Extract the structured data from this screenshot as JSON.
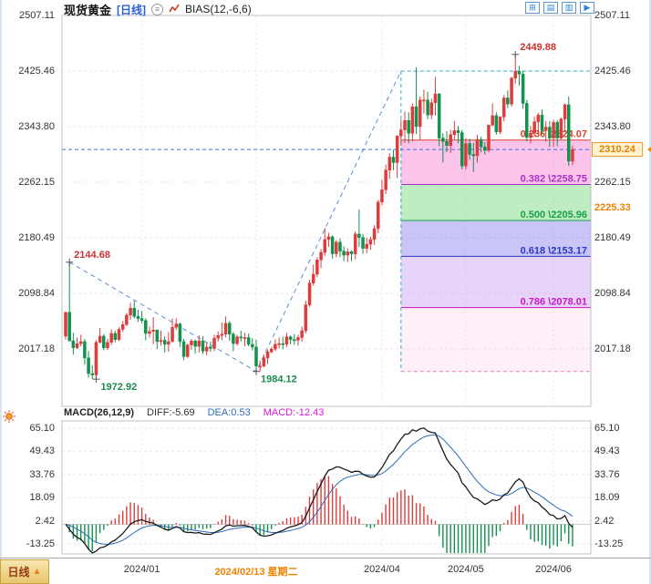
{
  "header": {
    "symbol": "现货黄金",
    "period": "[日线]",
    "indicator": "BIAS(12,-6,6)"
  },
  "toolbar": {
    "icons": [
      {
        "name": "quad-view-icon",
        "glyph": "⊞"
      },
      {
        "name": "bar-view-icon",
        "glyph": "▤"
      },
      {
        "name": "panel-view-icon",
        "glyph": "▥"
      },
      {
        "name": "play-icon",
        "glyph": "▶"
      }
    ]
  },
  "macd_panel": {
    "title": "MACD(26,12,9)",
    "diff": "DIFF:-5.69",
    "dea": "DEA:0.53",
    "macd": "MACD:-12.43"
  },
  "right_markers": {
    "last_price": "2310.24",
    "level_price": "2225.33"
  },
  "bottom_tab": {
    "label": "日线",
    "arrow": "▲"
  },
  "colors": {
    "up": "#dd3c3c",
    "down": "#12914e",
    "grid": "#e9e9ef",
    "border": "#c0c0c8",
    "current_price_line": "#3a6fd8",
    "trendline": "#5b8dd8",
    "fib_box_dash": "#35a8cc",
    "fib_bottom_dash": "#ee7ab8",
    "accent": "#f08300",
    "dif_line": "#1a1a1a",
    "dea_line": "#2b6cb8",
    "annotation_high": "#cc3030",
    "annotation_low": "#1d8a4d"
  },
  "chart_data": {
    "type": "candlestick",
    "title": "现货黄金 日线 (Spot Gold Daily) with MACD(26,12,9)",
    "price_ticks": [
      2507.11,
      2425.46,
      2343.8,
      2262.15,
      2180.49,
      2098.84,
      2017.18
    ],
    "macd_ticks": [
      65.1,
      49.43,
      33.76,
      18.09,
      2.42,
      -13.25
    ],
    "x_ticks": [
      {
        "label": "2024/01",
        "index": 20,
        "selected": false
      },
      {
        "label": "2024/02/13 星期二",
        "index": 50,
        "selected": true
      },
      {
        "label": "2024/04",
        "index": 83,
        "selected": false
      },
      {
        "label": "2024/05",
        "index": 105,
        "selected": false
      },
      {
        "label": "2024/06",
        "index": 128,
        "selected": false
      }
    ],
    "current_price": 2310.24,
    "annotations": [
      {
        "index": 1,
        "price": 2144.68,
        "text": "2144.68",
        "kind": "high"
      },
      {
        "index": 8,
        "price": 1972.92,
        "text": "1972.92",
        "kind": "low"
      },
      {
        "index": 50,
        "price": 1984.12,
        "text": "1984.12",
        "kind": "low"
      },
      {
        "index": 118,
        "price": 2449.88,
        "text": "2449.88",
        "kind": "high"
      }
    ],
    "fibonacci": {
      "box_start_index": 88,
      "box_top": 2425.46,
      "box_bottom": 1984.12,
      "levels": [
        {
          "label": "0.236 \\2324.07",
          "price": 2324.07,
          "color": "#d84028"
        },
        {
          "label": "0.382 \\2258.75",
          "price": 2258.75,
          "color": "#a832c8"
        },
        {
          "label": "0.500 \\2205.96",
          "price": 2205.96,
          "color": "#18a048"
        },
        {
          "label": "0.618 \\2153.17",
          "price": 2153.17,
          "color": "#2838c8"
        },
        {
          "label": "0.786 \\2078.01",
          "price": 2078.01,
          "color": "#c818c8"
        }
      ],
      "band_fills": [
        "rgba(248,100,200,0.38)",
        "rgba(110,215,120,0.45)",
        "rgba(120,110,235,0.40)",
        "rgba(185,120,235,0.32)",
        "rgba(250,170,220,0.18)"
      ]
    },
    "trendline": [
      {
        "index": 1,
        "price": 2144.68
      },
      {
        "index": 50,
        "price": 1984.12
      },
      {
        "index": 88,
        "price": 2425.46
      }
    ],
    "candles_ohlc": [
      [
        2036,
        2072,
        2031,
        2071
      ],
      [
        2071,
        2144.68,
        2063,
        2029
      ],
      [
        2029,
        2041,
        2009,
        2019
      ],
      [
        2019,
        2034,
        2017,
        2025
      ],
      [
        2025,
        2038,
        2021,
        2028
      ],
      [
        2028,
        2032,
        1994,
        2004
      ],
      [
        2004,
        2014,
        1975,
        1981
      ],
      [
        1981,
        1993,
        1973,
        1979
      ],
      [
        1979,
        2030,
        1972.92,
        2027
      ],
      [
        2027,
        2048,
        2025,
        2036
      ],
      [
        2036,
        2039,
        2015,
        2019
      ],
      [
        2019,
        2032,
        2016,
        2027
      ],
      [
        2027,
        2046,
        2023,
        2040
      ],
      [
        2040,
        2044,
        2027,
        2031
      ],
      [
        2031,
        2049,
        2029,
        2046
      ],
      [
        2046,
        2058,
        2042,
        2053
      ],
      [
        2053,
        2070,
        2051,
        2067
      ],
      [
        2067,
        2085,
        2060,
        2077
      ],
      [
        2077,
        2088,
        2062,
        2065
      ],
      [
        2065,
        2075,
        2057,
        2062
      ],
      [
        2062,
        2073,
        2055,
        2059
      ],
      [
        2059,
        2062,
        2030,
        2040
      ],
      [
        2040,
        2050,
        2034,
        2043
      ],
      [
        2043,
        2064,
        2024,
        2045
      ],
      [
        2045,
        2046,
        2017,
        2028
      ],
      [
        2028,
        2044,
        2022,
        2030
      ],
      [
        2030,
        2036,
        2012,
        2024
      ],
      [
        2024,
        2042,
        2013,
        2028
      ],
      [
        2028,
        2062,
        2027,
        2049
      ],
      [
        2049,
        2062,
        2045,
        2054
      ],
      [
        2054,
        2056,
        2020,
        2028
      ],
      [
        2028,
        2032,
        2001,
        2006
      ],
      [
        2006,
        2025,
        2004,
        2023
      ],
      [
        2023,
        2032,
        2016,
        2029
      ],
      [
        2029,
        2031,
        2010,
        2021
      ],
      [
        2021,
        2037,
        2012,
        2029
      ],
      [
        2029,
        2036,
        2010,
        2014
      ],
      [
        2014,
        2027,
        2008,
        2020
      ],
      [
        2020,
        2028,
        2013,
        2018
      ],
      [
        2018,
        2038,
        2014,
        2033
      ],
      [
        2033,
        2043,
        2028,
        2037
      ],
      [
        2037,
        2056,
        2030,
        2039
      ],
      [
        2039,
        2065,
        2034,
        2055
      ],
      [
        2055,
        2058,
        2029,
        2039
      ],
      [
        2039,
        2042,
        2014,
        2025
      ],
      [
        2025,
        2038,
        2022,
        2035
      ],
      [
        2035,
        2044,
        2028,
        2034
      ],
      [
        2034,
        2041,
        2021,
        2034
      ],
      [
        2034,
        2040,
        2021,
        2024
      ],
      [
        2024,
        2033,
        2015,
        2020
      ],
      [
        2020,
        2031,
        1984.12,
        1992
      ],
      [
        1992,
        2000,
        1984,
        1992
      ],
      [
        1992,
        2009,
        1990,
        2004
      ],
      [
        2004,
        2016,
        1995,
        2013
      ],
      [
        2013,
        2020,
        2011,
        2017
      ],
      [
        2017,
        2031,
        2014,
        2024
      ],
      [
        2024,
        2034,
        2018,
        2025
      ],
      [
        2025,
        2035,
        2017,
        2024
      ],
      [
        2024,
        2041,
        2020,
        2035
      ],
      [
        2035,
        2037,
        2024,
        2031
      ],
      [
        2031,
        2039,
        2023,
        2030
      ],
      [
        2030,
        2038,
        2022,
        2034
      ],
      [
        2034,
        2050,
        2028,
        2044
      ],
      [
        2044,
        2088,
        2040,
        2082
      ],
      [
        2082,
        2119,
        2079,
        2114
      ],
      [
        2114,
        2141,
        2110,
        2127
      ],
      [
        2127,
        2152,
        2123,
        2148
      ],
      [
        2148,
        2164,
        2136,
        2159
      ],
      [
        2159,
        2195,
        2154,
        2178
      ],
      [
        2178,
        2188,
        2167,
        2182
      ],
      [
        2182,
        2184,
        2150,
        2157
      ],
      [
        2157,
        2177,
        2152,
        2174
      ],
      [
        2174,
        2180,
        2152,
        2161
      ],
      [
        2161,
        2168,
        2146,
        2155
      ],
      [
        2155,
        2165,
        2145,
        2160
      ],
      [
        2160,
        2162,
        2146,
        2157
      ],
      [
        2157,
        2190,
        2149,
        2186
      ],
      [
        2186,
        2222,
        2167,
        2181
      ],
      [
        2181,
        2186,
        2157,
        2165
      ],
      [
        2165,
        2181,
        2158,
        2171
      ],
      [
        2171,
        2182,
        2163,
        2178
      ],
      [
        2178,
        2199,
        2170,
        2194
      ],
      [
        2194,
        2236,
        2187,
        2233
      ],
      [
        2233,
        2266,
        2228,
        2251
      ],
      [
        2251,
        2288,
        2245,
        2280
      ],
      [
        2280,
        2305,
        2267,
        2299
      ],
      [
        2299,
        2310,
        2280,
        2291
      ],
      [
        2291,
        2331,
        2268,
        2330
      ],
      [
        2330,
        2354,
        2316,
        2339
      ],
      [
        2339,
        2366,
        2320,
        2353
      ],
      [
        2353,
        2365,
        2319,
        2334
      ],
      [
        2334,
        2378,
        2322,
        2373
      ],
      [
        2373,
        2431,
        2333,
        2344
      ],
      [
        2344,
        2388,
        2324,
        2383
      ],
      [
        2383,
        2398,
        2363,
        2383
      ],
      [
        2383,
        2395,
        2355,
        2361
      ],
      [
        2361,
        2385,
        2355,
        2379
      ],
      [
        2379,
        2417,
        2360,
        2392
      ],
      [
        2392,
        2393,
        2315,
        2327
      ],
      [
        2327,
        2334,
        2291,
        2322
      ],
      [
        2322,
        2337,
        2306,
        2316
      ],
      [
        2316,
        2339,
        2305,
        2332
      ],
      [
        2332,
        2352,
        2325,
        2338
      ],
      [
        2338,
        2345,
        2319,
        2335
      ],
      [
        2335,
        2339,
        2281,
        2286
      ],
      [
        2286,
        2327,
        2281,
        2319
      ],
      [
        2319,
        2326,
        2295,
        2303
      ],
      [
        2303,
        2320,
        2277,
        2301
      ],
      [
        2301,
        2332,
        2291,
        2325
      ],
      [
        2325,
        2329,
        2306,
        2314
      ],
      [
        2314,
        2321,
        2303,
        2309
      ],
      [
        2309,
        2347,
        2306,
        2346
      ],
      [
        2346,
        2378,
        2344,
        2360
      ],
      [
        2360,
        2365,
        2332,
        2336
      ],
      [
        2336,
        2359,
        2333,
        2358
      ],
      [
        2358,
        2390,
        2352,
        2386
      ],
      [
        2386,
        2397,
        2371,
        2377
      ],
      [
        2377,
        2417,
        2373,
        2415
      ],
      [
        2415,
        2449.88,
        2407,
        2425
      ],
      [
        2425,
        2433,
        2404,
        2421
      ],
      [
        2421,
        2426,
        2370,
        2378
      ],
      [
        2378,
        2383,
        2322,
        2328
      ],
      [
        2328,
        2345,
        2319,
        2334
      ],
      [
        2334,
        2358,
        2330,
        2351
      ],
      [
        2351,
        2364,
        2333,
        2361
      ],
      [
        2361,
        2369,
        2332,
        2338
      ],
      [
        2338,
        2352,
        2322,
        2343
      ],
      [
        2343,
        2352,
        2314,
        2327
      ],
      [
        2327,
        2354,
        2314,
        2350
      ],
      [
        2350,
        2353,
        2315,
        2327
      ],
      [
        2327,
        2357,
        2325,
        2355
      ],
      [
        2355,
        2378,
        2336,
        2376
      ],
      [
        2376,
        2388,
        2286,
        2293
      ],
      [
        2293,
        2316,
        2287,
        2310.24
      ]
    ],
    "macd_note": "DIF=EMA12-EMA26 of closes, DEA=EMA9(DIF), bar=2*(DIF-DEA)"
  }
}
